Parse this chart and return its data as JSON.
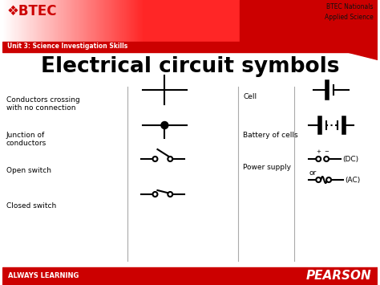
{
  "title": "Electrical circuit symbols",
  "bg_color": "#ffffff",
  "header_red": "#cc0000",
  "btec_text": "BTEC",
  "nationals_text": "BTEC Nationals\nApplied Science",
  "unit_text": "Unit 3: Science Investigation Skills",
  "footer_text": "ALWAYS LEARNING",
  "pearson_text": "PEARSON",
  "left_labels": [
    "Conductors crossing\nwith no connection",
    "Junction of\nconductors",
    "Open switch",
    "Closed switch"
  ],
  "middle_labels": [
    "Cell",
    "Battery of cells",
    "Power supply"
  ],
  "line_color": "#000000",
  "footer_red": "#cc0000"
}
